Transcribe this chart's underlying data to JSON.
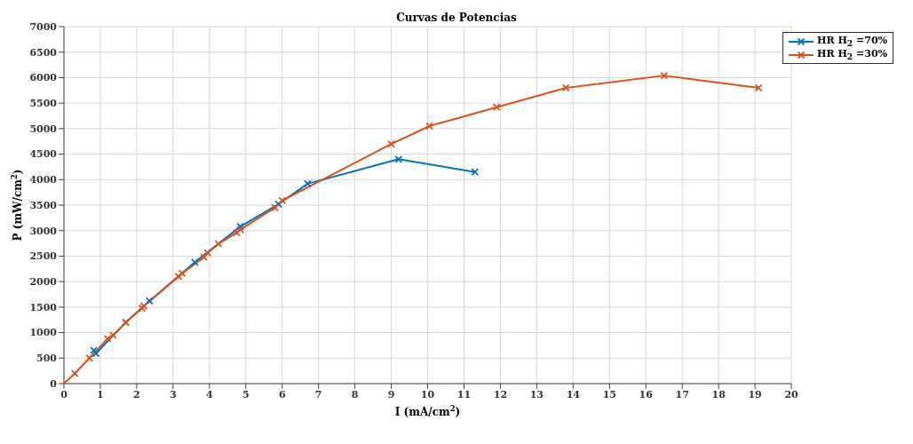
{
  "chart_data": {
    "type": "line",
    "title": "Curvas de Potencias",
    "xlabel": "I (mA/cm$^{2}$)",
    "ylabel": "P (mW/cm$^{2}$)",
    "xlim": [
      0,
      20
    ],
    "xticks": [
      0,
      1,
      2,
      3,
      4,
      5,
      6,
      7,
      8,
      9,
      10,
      11,
      12,
      13,
      14,
      15,
      16,
      17,
      18,
      19,
      20
    ],
    "ylim": [
      0,
      7000
    ],
    "yticks": [
      0,
      500,
      1000,
      1500,
      2000,
      2500,
      3000,
      3500,
      4000,
      4500,
      5000,
      5500,
      6000,
      6500,
      7000
    ],
    "grid": true,
    "legend": "top right",
    "marker": "cross",
    "line_style": "solid",
    "series": [
      {
        "name": "HR H$_{2}$ =70%",
        "color": "#0072bd",
        "x": [
          0.82,
          0.88,
          1.7,
          2.35,
          3.6,
          4.85,
          5.9,
          6.7,
          9.2,
          11.3
        ],
        "values": [
          650,
          590,
          1200,
          1620,
          2380,
          3080,
          3520,
          3920,
          4400,
          4150
        ]
      },
      {
        "name": "HR H$_{2}$ =30%",
        "color": "#d95319",
        "x": [
          0,
          0.3,
          0.7,
          1.2,
          1.35,
          1.7,
          2.15,
          2.2,
          3.15,
          3.25,
          3.85,
          3.95,
          4.25,
          4.75,
          4.85,
          5.8,
          6.0,
          9.0,
          10.05,
          11.9,
          13.8,
          16.5,
          19.1
        ],
        "values": [
          0,
          200,
          500,
          880,
          950,
          1200,
          1480,
          1520,
          2100,
          2160,
          2480,
          2560,
          2740,
          2960,
          3020,
          3450,
          3590,
          4700,
          5050,
          5420,
          5800,
          6040,
          5800
        ]
      }
    ]
  }
}
